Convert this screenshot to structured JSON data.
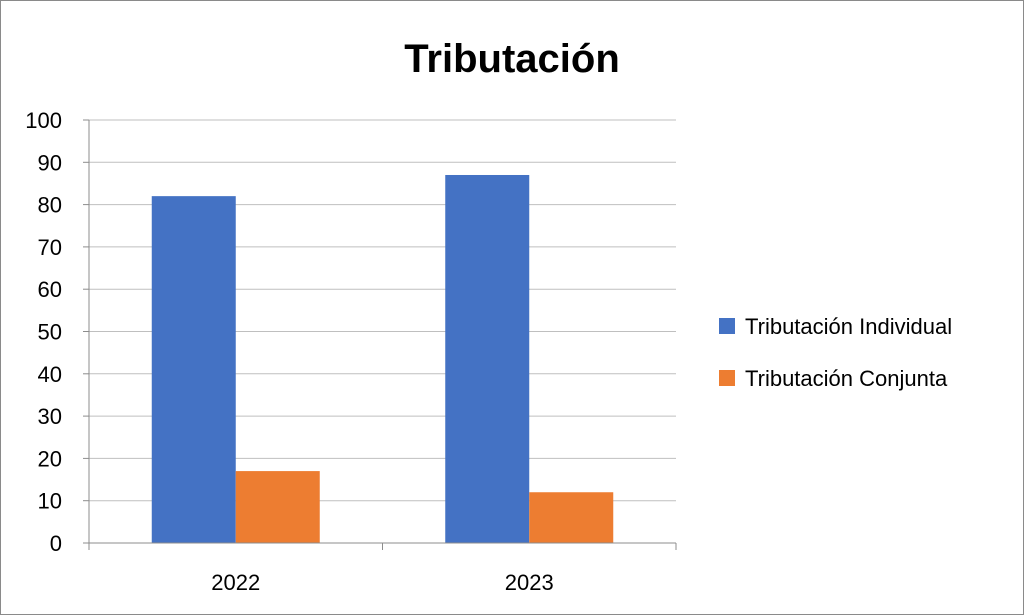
{
  "chart_data": {
    "type": "bar",
    "title": "Tributación",
    "categories": [
      "2022",
      "2023"
    ],
    "series": [
      {
        "name": "Tributación Individual",
        "color": "#4472C4",
        "values": [
          82,
          87
        ]
      },
      {
        "name": "Tributación Conjunta",
        "color": "#ED7D31",
        "values": [
          17,
          12
        ]
      }
    ],
    "ylim": [
      0,
      100
    ],
    "yticks": [
      0,
      10,
      20,
      30,
      40,
      50,
      60,
      70,
      80,
      90,
      100
    ],
    "xlabel": "",
    "ylabel": "",
    "grid": true,
    "legend_position": "right"
  }
}
